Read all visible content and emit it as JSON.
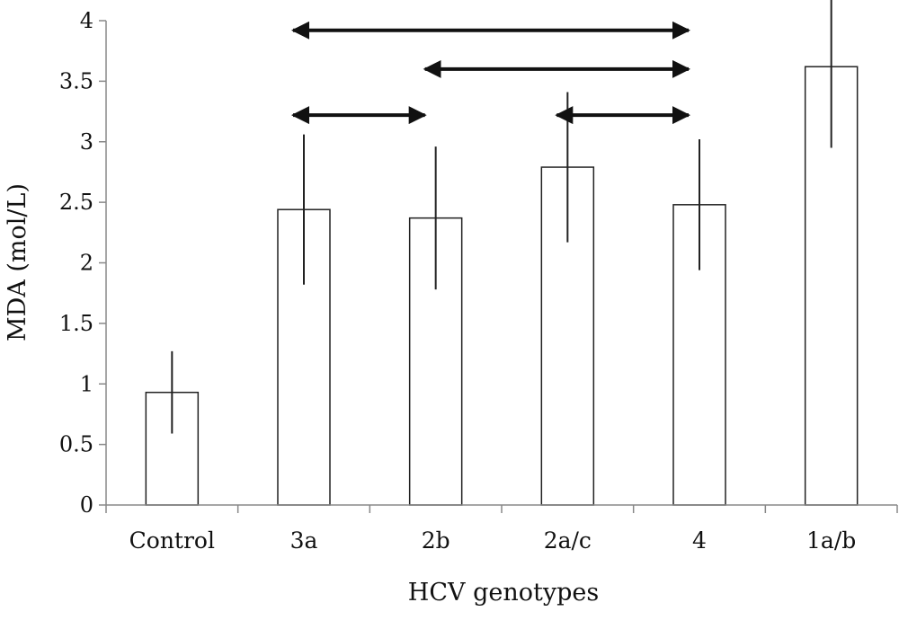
{
  "chart_data": {
    "type": "bar",
    "title": "",
    "xlabel": "HCV genotypes",
    "ylabel": "MDA (mol/L)",
    "ylim": [
      0,
      4
    ],
    "yticks": [
      0,
      0.5,
      1,
      1.5,
      2,
      2.5,
      3,
      3.5,
      4
    ],
    "ytick_labels": [
      "0",
      "0.5",
      "1",
      "1.5",
      "2",
      "2.5",
      "3",
      "3.5",
      "4"
    ],
    "categories": [
      "Control",
      "3a",
      "2b",
      "2a/c",
      "4",
      "1a/b"
    ],
    "values": [
      0.93,
      2.44,
      2.37,
      2.79,
      2.48,
      3.62
    ],
    "error": [
      0.34,
      0.62,
      0.59,
      0.62,
      0.54,
      0.67
    ],
    "grid": false,
    "legend": "none",
    "bar_fill": "#ffffff",
    "bar_stroke": "#222222",
    "comparisons": [
      {
        "from": "3a",
        "to": "4",
        "y": 3.92
      },
      {
        "from": "2b",
        "to": "4",
        "y": 3.6
      },
      {
        "from": "3a",
        "to": "2b",
        "y": 3.22
      },
      {
        "from": "2a/c",
        "to": "4",
        "y": 3.22
      }
    ]
  }
}
